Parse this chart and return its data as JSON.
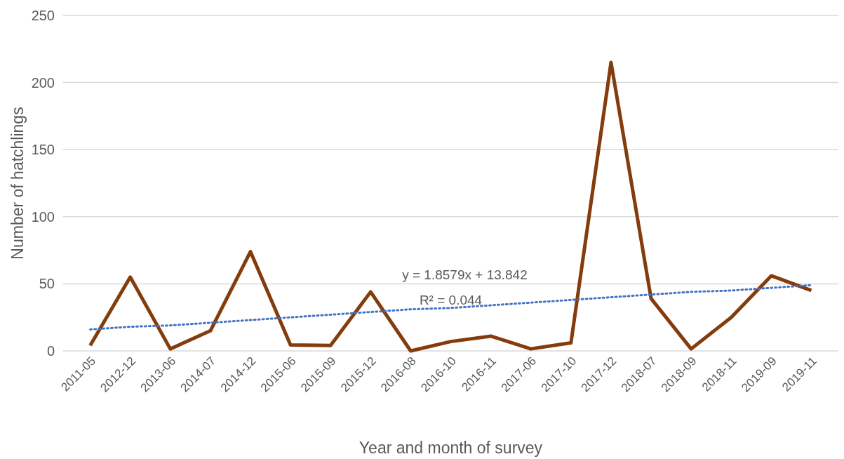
{
  "chart_data": {
    "type": "line",
    "xlabel": "Year and month of survey",
    "ylabel": "Number of hatchlings",
    "categories": [
      "2011-05",
      "2012-12",
      "2013-06",
      "2014-07",
      "2014-12",
      "2015-06",
      "2015-09",
      "2015-12",
      "2016-08",
      "2016-10",
      "2016-11",
      "2017-06",
      "2017-10",
      "2017-12",
      "2018-07",
      "2018-09",
      "2018-11",
      "2019-09",
      "2019-11"
    ],
    "series": [
      {
        "color": "#843c0c",
        "values": [
          4,
          55,
          1.5,
          15,
          74,
          4.5,
          4,
          44,
          0,
          7,
          11,
          1.5,
          6,
          215,
          39,
          1.5,
          25,
          56,
          45
        ]
      },
      {
        "type": "line",
        "color": "#4472c4",
        "line_style": "dotted",
        "values": [
          16,
          18,
          19,
          21,
          23,
          25,
          27,
          29,
          31,
          32,
          34,
          36,
          38,
          40,
          42,
          44,
          45,
          47,
          49
        ]
      }
    ],
    "annotations": [
      "y = 1.8579x + 13.842",
      "R² = 0.044"
    ],
    "ylim": [
      0,
      250
    ],
    "yticks": [
      0,
      50,
      100,
      150,
      200,
      250
    ],
    "grid": "y",
    "marker": "none",
    "line_style": "solid"
  }
}
